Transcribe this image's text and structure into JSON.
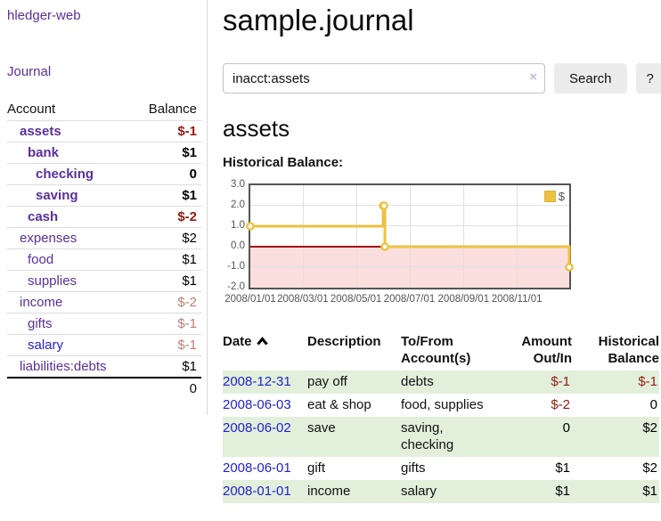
{
  "app": {
    "brand": "hledger-web",
    "nav_journal": "Journal"
  },
  "sidebar": {
    "headers": {
      "account": "Account",
      "balance": "Balance"
    },
    "accounts": [
      {
        "name": "assets",
        "balance": "$-1",
        "depth": 1,
        "selected": true,
        "negative": "strong"
      },
      {
        "name": "bank",
        "balance": "$1",
        "depth": 2,
        "selected": true,
        "negative": null
      },
      {
        "name": "checking",
        "balance": "0",
        "depth": 3,
        "selected": true,
        "negative": null
      },
      {
        "name": "saving",
        "balance": "$1",
        "depth": 3,
        "selected": true,
        "negative": null
      },
      {
        "name": "cash",
        "balance": "$-2",
        "depth": 2,
        "selected": true,
        "negative": "strong"
      },
      {
        "name": "expenses",
        "balance": "$2",
        "depth": 1,
        "selected": false,
        "negative": null
      },
      {
        "name": "food",
        "balance": "$1",
        "depth": 2,
        "selected": false,
        "negative": null
      },
      {
        "name": "supplies",
        "balance": "$1",
        "depth": 2,
        "selected": false,
        "negative": null
      },
      {
        "name": "income",
        "balance": "$-2",
        "depth": 1,
        "selected": false,
        "negative": "muted"
      },
      {
        "name": "gifts",
        "balance": "$-1",
        "depth": 2,
        "selected": false,
        "negative": "muted"
      },
      {
        "name": "salary",
        "balance": "$-1",
        "depth": 2,
        "selected": false,
        "negative": "muted",
        "unvisited": true
      },
      {
        "name": "liabilities:debts",
        "balance": "$1",
        "depth": 1,
        "selected": false,
        "negative": null
      }
    ],
    "total": "0"
  },
  "main": {
    "title": "sample.journal",
    "search": {
      "value": "inacct:assets",
      "clear_icon": "×",
      "button_label": "Search",
      "help_label": "?"
    },
    "account_heading": "assets",
    "chart_label": "Historical Balance:"
  },
  "register": {
    "headers": [
      {
        "lines": [
          "Date",
          ""
        ],
        "sort": "ascending"
      },
      {
        "lines": [
          "Description",
          ""
        ]
      },
      {
        "lines": [
          "To/From",
          "Account(s)"
        ]
      },
      {
        "lines": [
          "Amount",
          "Out/In"
        ],
        "align": "right"
      },
      {
        "lines": [
          "Historical",
          "Balance"
        ],
        "align": "right"
      }
    ],
    "rows": [
      {
        "date": "2008-12-31",
        "description": "pay off",
        "accounts": "debts",
        "amount": "$-1",
        "amount_negative": true,
        "balance": "$-1",
        "balance_negative": true
      },
      {
        "date": "2008-06-03",
        "description": "eat & shop",
        "accounts": "food, supplies",
        "amount": "$-2",
        "amount_negative": true,
        "balance": "0",
        "balance_negative": false
      },
      {
        "date": "2008-06-02",
        "description": "save",
        "accounts": "saving, checking",
        "amount": "0",
        "amount_negative": false,
        "balance": "$2",
        "balance_negative": false
      },
      {
        "date": "2008-06-01",
        "description": "gift",
        "accounts": "gifts",
        "amount": "$1",
        "amount_negative": false,
        "balance": "$2",
        "balance_negative": false
      },
      {
        "date": "2008-01-01",
        "description": "income",
        "accounts": "salary",
        "amount": "$1",
        "amount_negative": false,
        "balance": "$1",
        "balance_negative": false
      }
    ]
  },
  "chart_data": {
    "type": "line",
    "step": true,
    "title": "Historical Balance:",
    "legend": "$",
    "legend_position": "top-right",
    "series": [
      {
        "name": "$",
        "color": "#edc240",
        "points": [
          {
            "date": "2008-01-01",
            "value": 1
          },
          {
            "date": "2008-06-01",
            "value": 2
          },
          {
            "date": "2008-06-02",
            "value": 2
          },
          {
            "date": "2008-06-03",
            "value": 0
          },
          {
            "date": "2008-12-31",
            "value": -1
          }
        ]
      }
    ],
    "xrange": [
      "2008-01-01",
      "2008-12-31"
    ],
    "ylim": [
      -2,
      3
    ],
    "yticks": [
      {
        "value": 3,
        "label": "3.0"
      },
      {
        "value": 2,
        "label": "2.0"
      },
      {
        "value": 1,
        "label": "1.0"
      },
      {
        "value": 0,
        "label": "0.0"
      },
      {
        "value": -1,
        "label": "-1.0"
      },
      {
        "value": -2,
        "label": "-2.0"
      }
    ],
    "xticks": [
      {
        "date": "2008-01-01",
        "label": "2008/01/01"
      },
      {
        "date": "2008-03-01",
        "label": "2008/03/01"
      },
      {
        "date": "2008-05-01",
        "label": "2008/05/01"
      },
      {
        "date": "2008-07-01",
        "label": "2008/07/01"
      },
      {
        "date": "2008-09-01",
        "label": "2008/09/01"
      },
      {
        "date": "2008-11-01",
        "label": "2008/11/01"
      }
    ],
    "grid": true,
    "negative_region_color": "#fbdede",
    "zero_line_color": "#a11414"
  }
}
